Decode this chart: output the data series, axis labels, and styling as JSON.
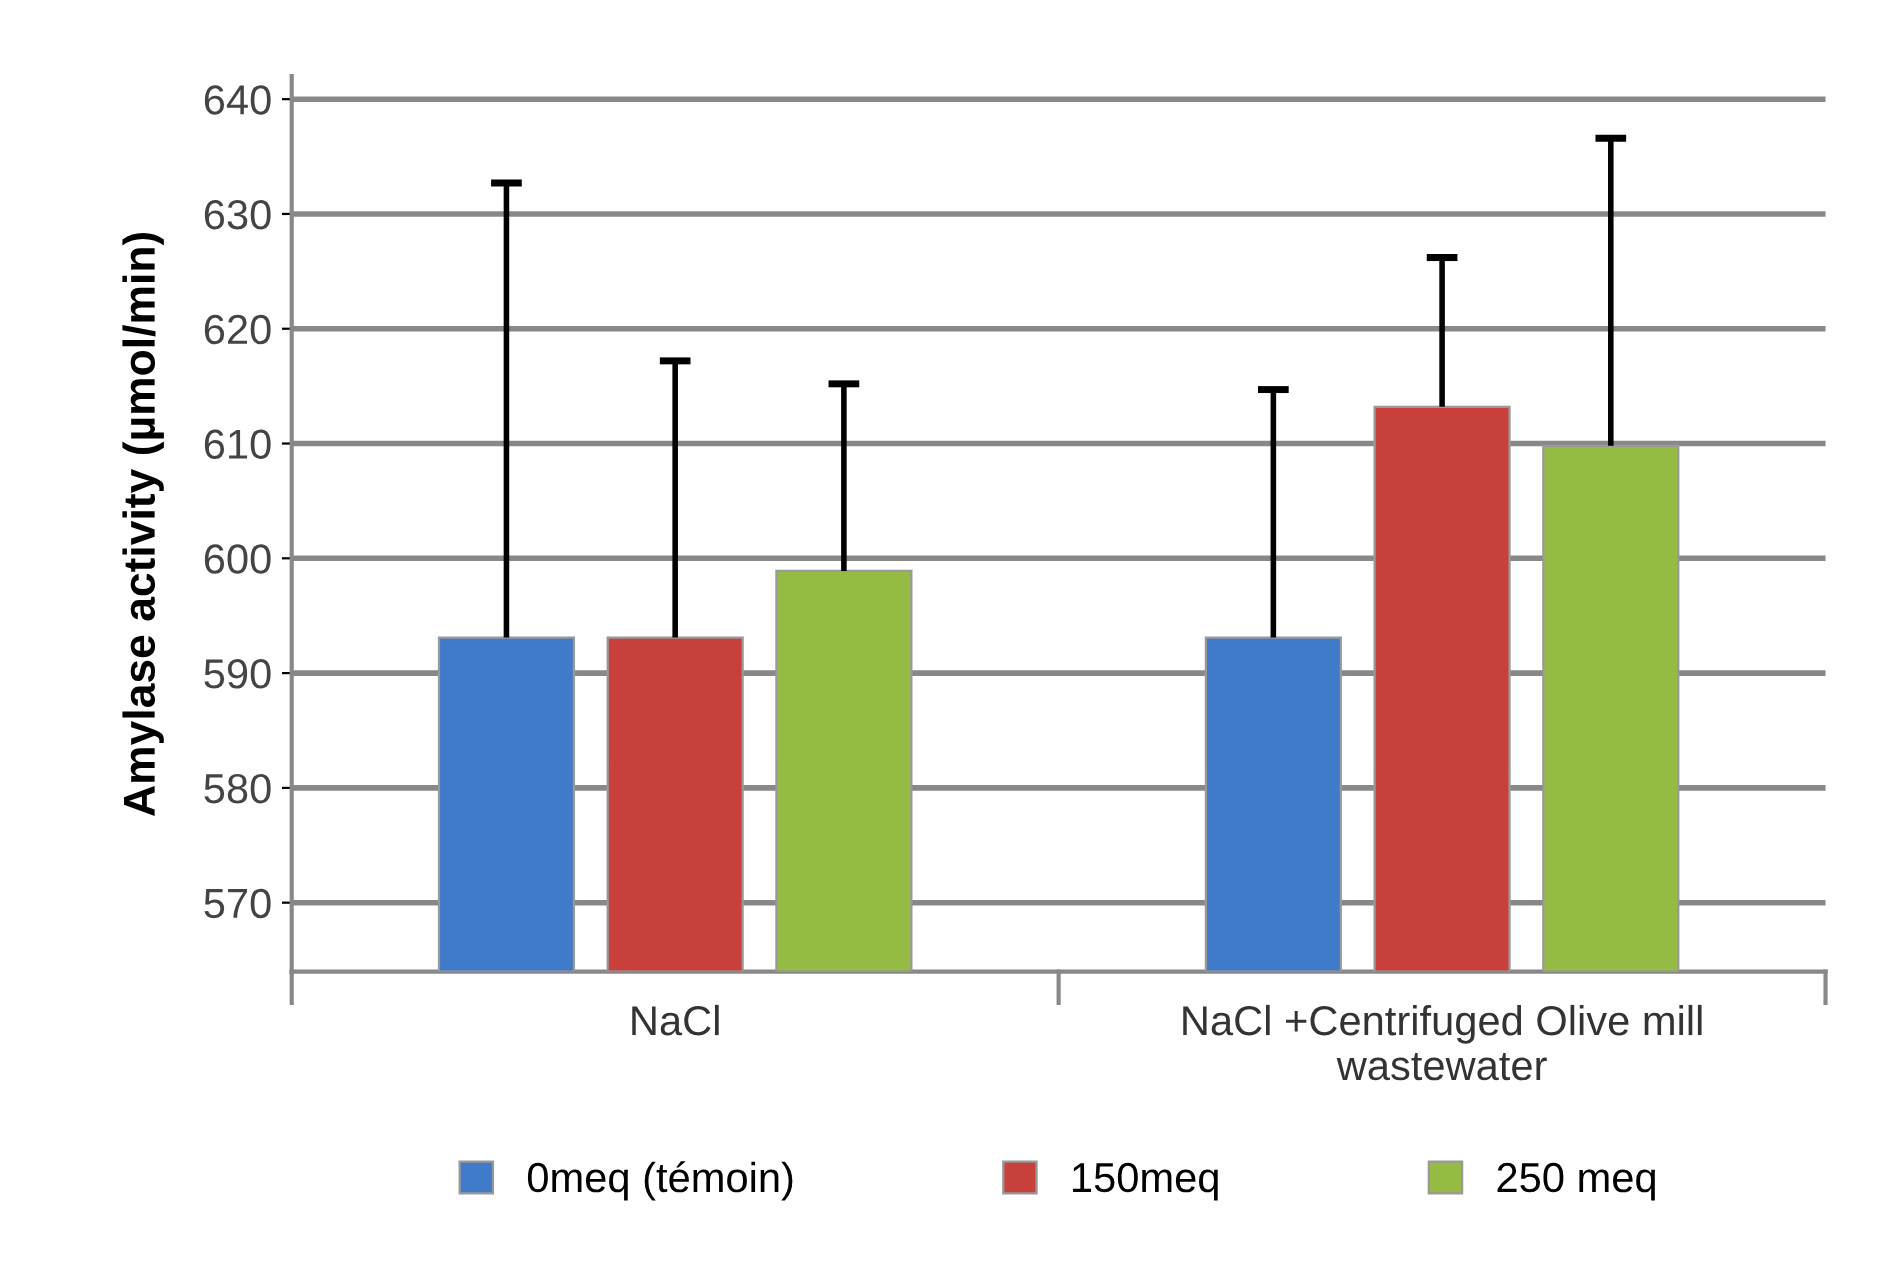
{
  "chart_data": {
    "type": "bar",
    "ylabel": "Amylase activity (µmol/min)",
    "categories": [
      "NaCl",
      "NaCl +Centrifuged Olive mill\nwastewater"
    ],
    "series": [
      {
        "name": "0meq (témoin)",
        "color": "#3f7bc9",
        "values": [
          593.1,
          593.1
        ],
        "errors": [
          [
            593.1,
            632.7
          ],
          [
            593.1,
            614.7
          ]
        ]
      },
      {
        "name": "150meq",
        "color": "#c8403c",
        "values": [
          593.1,
          613.2
        ],
        "errors": [
          [
            593.1,
            617.2
          ],
          [
            613.2,
            626.2
          ]
        ]
      },
      {
        "name": "250 meq",
        "color": "#95bb45",
        "values": [
          598.9,
          609.8
        ],
        "errors": [
          [
            598.9,
            615.2
          ],
          [
            609.8,
            636.6
          ]
        ]
      }
    ],
    "ylim": [
      564,
      642
    ],
    "yticks": [
      570,
      580,
      590,
      600,
      610,
      620,
      630,
      640
    ],
    "grid": "y",
    "legend": "bottom"
  }
}
